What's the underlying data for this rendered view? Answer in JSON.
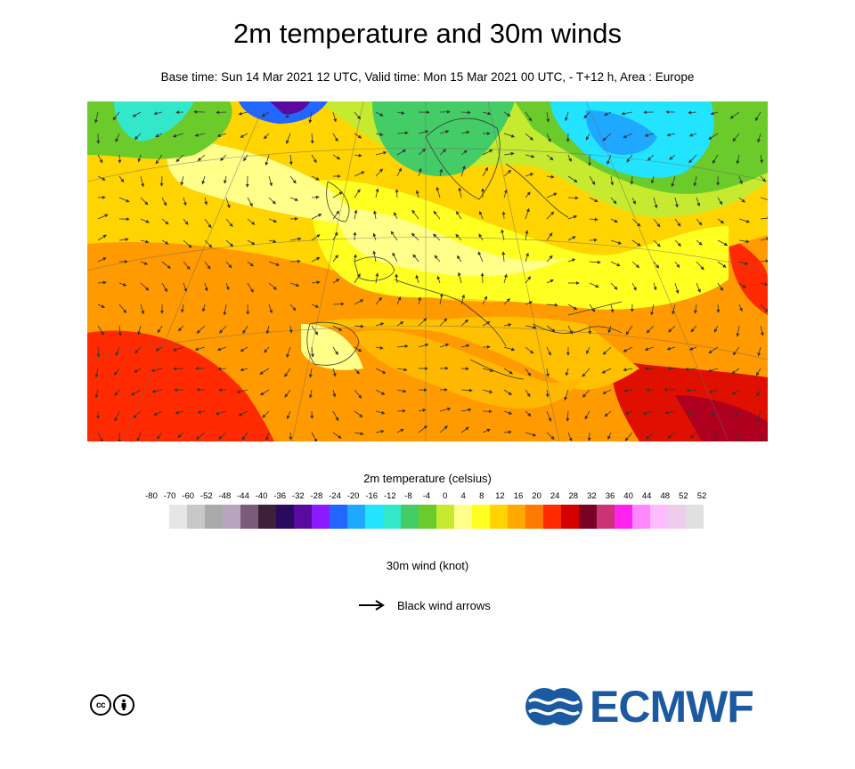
{
  "title": "2m temperature and 30m winds",
  "subtitle": "Base time: Sun 14 Mar 2021 12 UTC, Valid time: Mon 15 Mar 2021 00 UTC, - T+12 h, Area : Europe",
  "legend": {
    "title": "2m temperature (celsius)",
    "ticks": [
      "-80",
      "-70",
      "-60",
      "-52",
      "-48",
      "-44",
      "-40",
      "-36",
      "-32",
      "-28",
      "-24",
      "-20",
      "-16",
      "-12",
      "-8",
      "-4",
      "0",
      "4",
      "8",
      "12",
      "16",
      "20",
      "24",
      "28",
      "32",
      "36",
      "40",
      "44",
      "48",
      "52",
      "52"
    ],
    "colors": [
      "#e6e6e6",
      "#c8c8c8",
      "#aaaaaa",
      "#b9a4bd",
      "#7c5a7a",
      "#3d2138",
      "#2a0a5e",
      "#5a0a9e",
      "#8c1aff",
      "#2266ff",
      "#1fa8ff",
      "#22e4ff",
      "#33e8c8",
      "#44cc66",
      "#6acb2a",
      "#c5ea2f",
      "#ffff8a",
      "#ffff22",
      "#ffd400",
      "#ffa800",
      "#ff7a00",
      "#ff2a00",
      "#d40000",
      "#7a0026",
      "#cc3377",
      "#ff22ee",
      "#ff88ff",
      "#ffbbff",
      "#eeccee",
      "#e0e0e0"
    ]
  },
  "wind": {
    "title": "30m wind (knot)",
    "arrow_label": "Black wind arrows"
  },
  "license_icons": [
    "cc",
    "i"
  ],
  "logo": {
    "text": "ECMWF",
    "color": "#1b5aa0"
  }
}
